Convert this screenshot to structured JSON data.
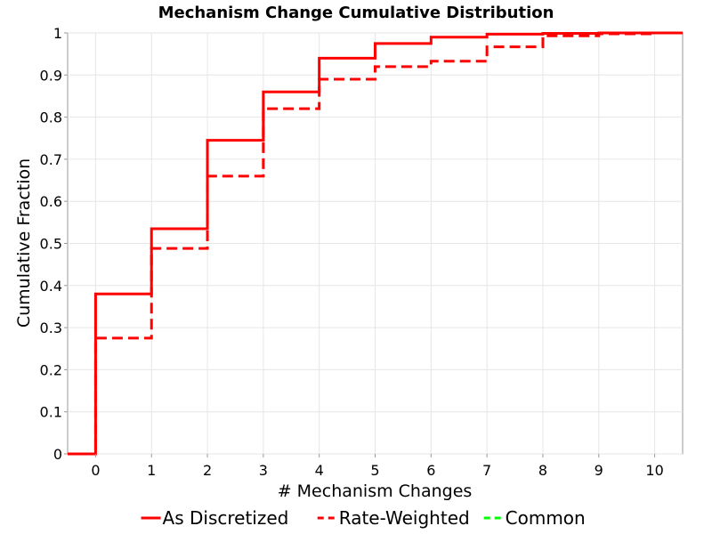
{
  "chart_data": {
    "type": "line",
    "title": "Mechanism Change Cumulative Distribution",
    "xlabel": "# Mechanism Changes",
    "ylabel": "Cumulative Fraction",
    "xlim": [
      -0.5,
      10.5
    ],
    "ylim": [
      0,
      1
    ],
    "xticks": [
      "0",
      "1",
      "2",
      "3",
      "4",
      "5",
      "6",
      "7",
      "8",
      "9",
      "10"
    ],
    "yticks": [
      "0",
      "0.1",
      "0.2",
      "0.3",
      "0.4",
      "0.5",
      "0.6",
      "0.7",
      "0.8",
      "0.9",
      "1"
    ],
    "grid": true,
    "legend_position": "bottom",
    "step": true,
    "series": [
      {
        "name": "As Discretized",
        "color": "#ff0000",
        "style": "solid",
        "x": [
          -0.5,
          0,
          1,
          2,
          3,
          4,
          5,
          6,
          7,
          8,
          9,
          10,
          10.5
        ],
        "values": [
          0,
          0.38,
          0.535,
          0.745,
          0.86,
          0.94,
          0.975,
          0.99,
          0.997,
          0.999,
          1.0,
          1.0,
          1.0
        ]
      },
      {
        "name": "Rate-Weighted",
        "color": "#ff0000",
        "style": "dashed",
        "x": [
          -0.5,
          0,
          1,
          2,
          3,
          4,
          5,
          6,
          7,
          8,
          9,
          10,
          10.5
        ],
        "values": [
          0,
          0.275,
          0.488,
          0.66,
          0.82,
          0.89,
          0.92,
          0.933,
          0.967,
          0.993,
          0.998,
          1.0,
          1.0
        ]
      },
      {
        "name": "Common",
        "color": "#00ff00",
        "style": "dashed",
        "x": [],
        "values": []
      }
    ]
  }
}
